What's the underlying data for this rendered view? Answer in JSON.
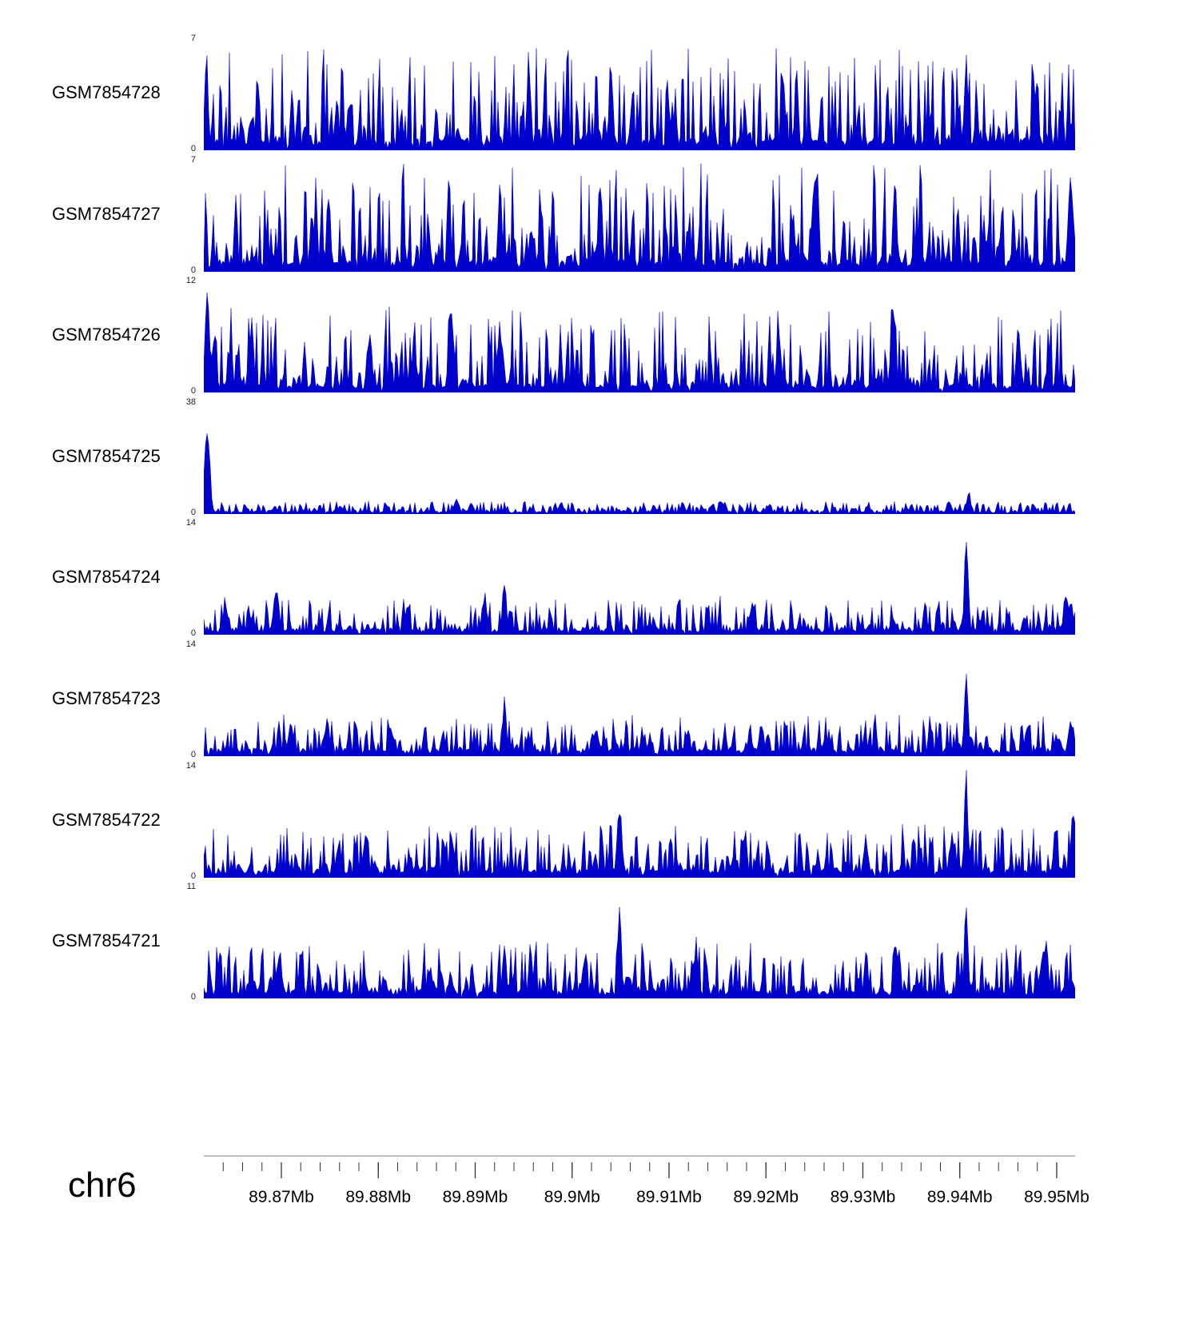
{
  "figure": {
    "background": "#ffffff"
  },
  "chart_data": {
    "type": "area",
    "description": "Genome browser coverage tracks, filled area signal per sample",
    "chromosome": "chr6",
    "colors": {
      "signal": "#0000cc",
      "axis_line": "#999999",
      "tick": "#333333",
      "text": "#000000"
    },
    "x_axis": {
      "unit": "Mb",
      "start_mb": 89.862,
      "end_mb": 89.9519,
      "minor_tick_step_mb": 0.002,
      "major_ticks_mb": [
        89.87,
        89.88,
        89.89,
        89.9,
        89.91,
        89.92,
        89.93,
        89.94,
        89.95
      ],
      "tick_labels": [
        "89.87Mb",
        "89.88Mb",
        "89.89Mb",
        "89.9Mb",
        "89.91Mb",
        "89.92Mb",
        "89.93Mb",
        "89.94Mb",
        "89.95Mb"
      ]
    },
    "tracks": [
      {
        "name": "GSM7854728",
        "ymax": 7,
        "ymin": 0,
        "seed": 11,
        "floor": 0.09,
        "amp": 0.85,
        "pow": 3.0,
        "peaks": [
          {
            "x": 0.003,
            "h": 0.93,
            "w": 0.003
          },
          {
            "x": 0.062,
            "h": 0.8,
            "w": 0.003
          },
          {
            "x": 0.373,
            "h": 1.0,
            "w": 0.003
          },
          {
            "x": 0.467,
            "h": 0.82,
            "w": 0.003
          },
          {
            "x": 0.665,
            "h": 0.88,
            "w": 0.003
          },
          {
            "x": 0.875,
            "h": 1.0,
            "w": 0.003
          },
          {
            "x": 0.956,
            "h": 0.8,
            "w": 0.003
          }
        ]
      },
      {
        "name": "GSM7854727",
        "ymax": 7,
        "ymin": 0,
        "seed": 22,
        "floor": 0.1,
        "amp": 0.9,
        "pow": 3.0,
        "peaks": [
          {
            "x": 0.143,
            "h": 0.85,
            "w": 0.003
          },
          {
            "x": 0.34,
            "h": 0.85,
            "w": 0.003
          },
          {
            "x": 0.455,
            "h": 1.0,
            "w": 0.003
          },
          {
            "x": 0.7,
            "h": 0.93,
            "w": 0.003
          },
          {
            "x": 0.793,
            "h": 0.95,
            "w": 0.003
          },
          {
            "x": 0.995,
            "h": 0.9,
            "w": 0.004
          }
        ]
      },
      {
        "name": "GSM7854726",
        "ymax": 12,
        "ymin": 0,
        "seed": 33,
        "floor": 0.07,
        "amp": 0.7,
        "pow": 3.2,
        "peaks": [
          {
            "x": 0.004,
            "h": 0.95,
            "w": 0.004
          },
          {
            "x": 0.19,
            "h": 0.6,
            "w": 0.004
          },
          {
            "x": 0.284,
            "h": 0.88,
            "w": 0.004
          },
          {
            "x": 0.34,
            "h": 0.65,
            "w": 0.005
          },
          {
            "x": 0.66,
            "h": 0.55,
            "w": 0.004
          },
          {
            "x": 0.79,
            "h": 0.85,
            "w": 0.003
          },
          {
            "x": 0.935,
            "h": 0.55,
            "w": 0.004
          }
        ]
      },
      {
        "name": "GSM7854725",
        "ymax": 38,
        "ymin": 0,
        "seed": 44,
        "floor": 0.02,
        "amp": 0.1,
        "pow": 2.0,
        "peaks": [
          {
            "x": 0.004,
            "h": 1.0,
            "w": 0.004
          },
          {
            "x": 0.29,
            "h": 0.17,
            "w": 0.004
          },
          {
            "x": 0.55,
            "h": 0.09,
            "w": 0.004
          },
          {
            "x": 0.878,
            "h": 0.25,
            "w": 0.003
          }
        ]
      },
      {
        "name": "GSM7854724",
        "ymax": 14,
        "ymin": 0,
        "seed": 55,
        "floor": 0.05,
        "amp": 0.3,
        "pow": 3.0,
        "peaks": [
          {
            "x": 0.083,
            "h": 0.5,
            "w": 0.004
          },
          {
            "x": 0.322,
            "h": 0.4,
            "w": 0.004
          },
          {
            "x": 0.345,
            "h": 0.58,
            "w": 0.003
          },
          {
            "x": 0.63,
            "h": 0.32,
            "w": 0.004
          },
          {
            "x": 0.875,
            "h": 1.0,
            "w": 0.003
          },
          {
            "x": 0.995,
            "h": 0.35,
            "w": 0.004
          }
        ]
      },
      {
        "name": "GSM7854723",
        "ymax": 14,
        "ymin": 0,
        "seed": 66,
        "floor": 0.06,
        "amp": 0.32,
        "pow": 3.0,
        "peaks": [
          {
            "x": 0.1,
            "h": 0.3,
            "w": 0.005
          },
          {
            "x": 0.345,
            "h": 0.62,
            "w": 0.003
          },
          {
            "x": 0.45,
            "h": 0.3,
            "w": 0.004
          },
          {
            "x": 0.64,
            "h": 0.32,
            "w": 0.004
          },
          {
            "x": 0.875,
            "h": 1.0,
            "w": 0.003
          },
          {
            "x": 0.995,
            "h": 0.38,
            "w": 0.004
          }
        ]
      },
      {
        "name": "GSM7854722",
        "ymax": 14,
        "ymin": 0,
        "seed": 77,
        "floor": 0.07,
        "amp": 0.42,
        "pow": 3.0,
        "peaks": [
          {
            "x": 0.155,
            "h": 0.38,
            "w": 0.004
          },
          {
            "x": 0.185,
            "h": 0.4,
            "w": 0.004
          },
          {
            "x": 0.285,
            "h": 0.38,
            "w": 0.004
          },
          {
            "x": 0.477,
            "h": 0.7,
            "w": 0.004
          },
          {
            "x": 0.76,
            "h": 0.4,
            "w": 0.004
          },
          {
            "x": 0.875,
            "h": 1.0,
            "w": 0.003
          },
          {
            "x": 0.998,
            "h": 0.65,
            "w": 0.004
          }
        ]
      },
      {
        "name": "GSM7854721",
        "ymax": 11,
        "ymin": 0,
        "seed": 88,
        "floor": 0.07,
        "amp": 0.45,
        "pow": 2.8,
        "peaks": [
          {
            "x": 0.087,
            "h": 0.45,
            "w": 0.004
          },
          {
            "x": 0.345,
            "h": 0.62,
            "w": 0.003
          },
          {
            "x": 0.375,
            "h": 0.55,
            "w": 0.003
          },
          {
            "x": 0.477,
            "h": 0.93,
            "w": 0.003
          },
          {
            "x": 0.565,
            "h": 0.58,
            "w": 0.003
          },
          {
            "x": 0.76,
            "h": 0.55,
            "w": 0.003
          },
          {
            "x": 0.875,
            "h": 1.0,
            "w": 0.003
          },
          {
            "x": 0.965,
            "h": 0.5,
            "w": 0.004
          }
        ]
      }
    ]
  }
}
